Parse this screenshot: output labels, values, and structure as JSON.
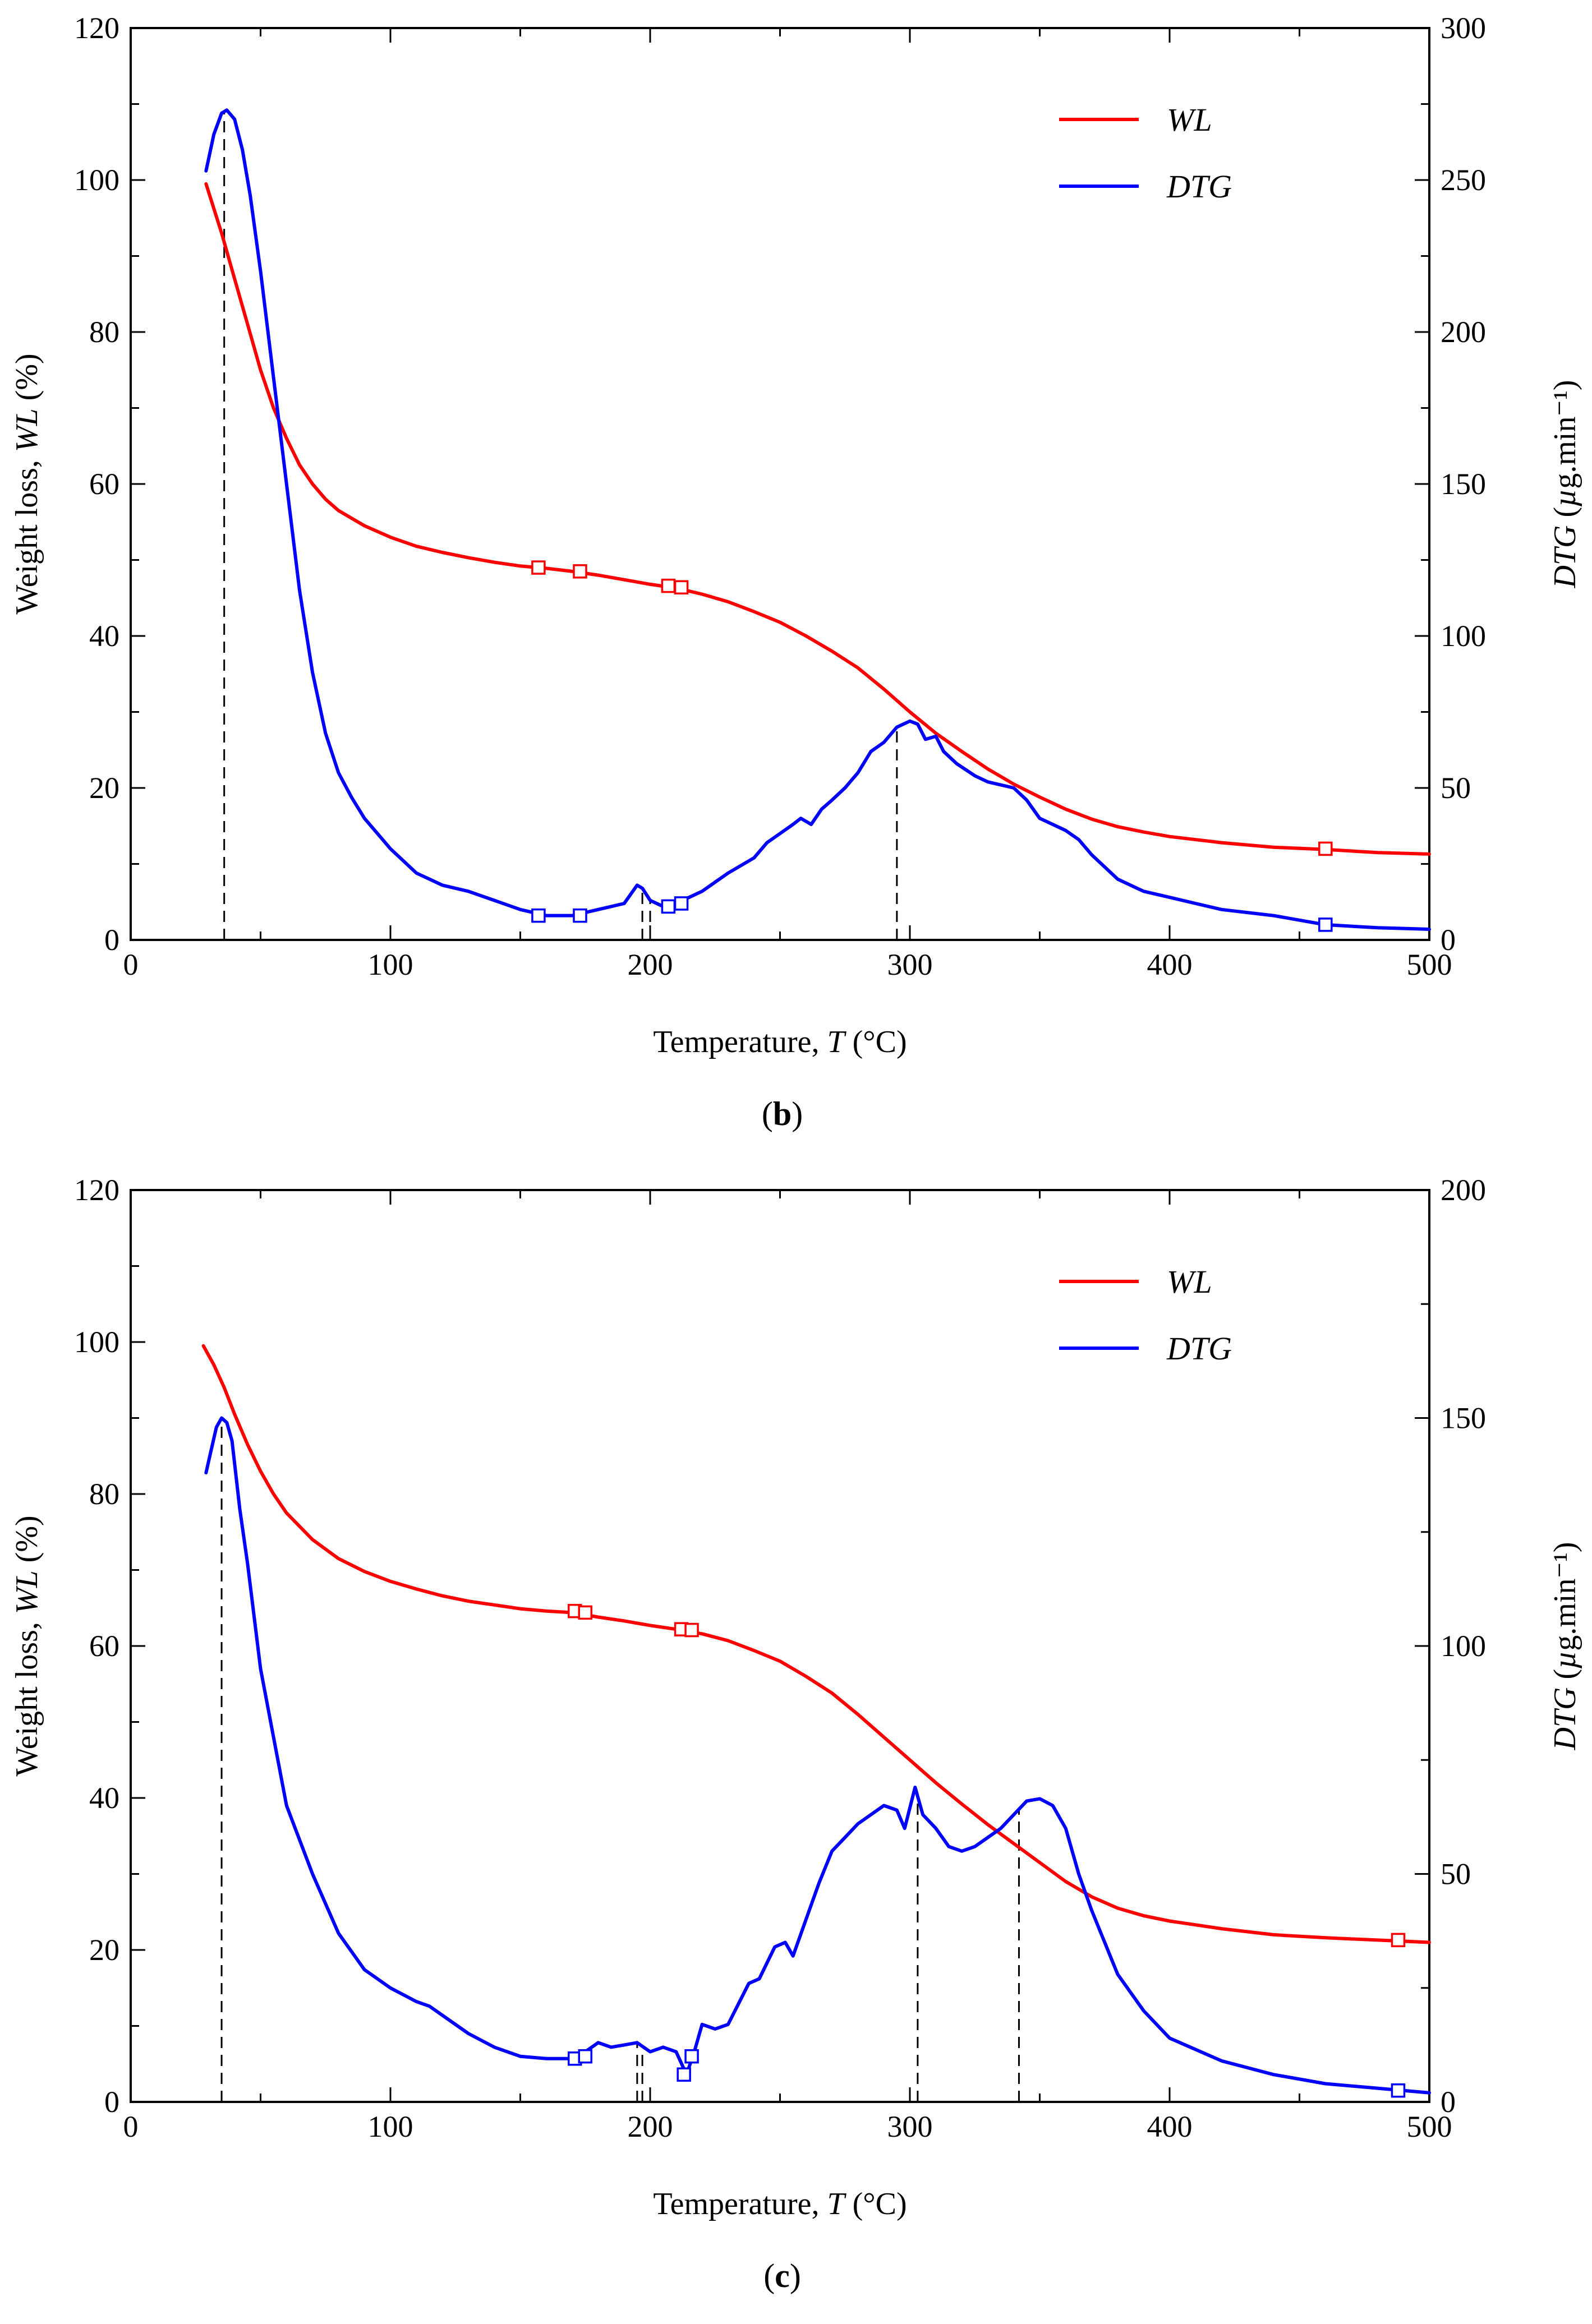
{
  "chart_data": [
    {
      "type": "line",
      "panel_label": "b",
      "caption": "(b)",
      "xlabel": "Temperature, T (°C)",
      "ylabel_left": "Weight loss, WL (%)",
      "ylabel_right": "DTG (µg.min⁻¹)",
      "xlim": [
        0,
        500
      ],
      "ylim_left": [
        0,
        120
      ],
      "ylim_right": [
        0,
        300
      ],
      "x_ticks": [
        0,
        100,
        200,
        300,
        400,
        500
      ],
      "y_ticks_left": [
        0,
        20,
        40,
        60,
        80,
        100,
        120
      ],
      "y_ticks_right": [
        0,
        50,
        100,
        150,
        200,
        250,
        300
      ],
      "legend": [
        "WL",
        "DTG"
      ],
      "series": [
        {
          "name": "WL",
          "axis": "left",
          "color": "#ff0000",
          "x": [
            29,
            35,
            40,
            45,
            50,
            55,
            60,
            65,
            70,
            75,
            80,
            90,
            100,
            110,
            120,
            130,
            140,
            150,
            160,
            170,
            180,
            190,
            200,
            210,
            220,
            230,
            240,
            250,
            260,
            270,
            280,
            290,
            300,
            310,
            320,
            330,
            340,
            350,
            360,
            370,
            380,
            390,
            400,
            420,
            440,
            460,
            480,
            500
          ],
          "values": [
            99.5,
            93,
            87,
            81,
            75,
            70,
            66,
            62.5,
            60,
            58,
            56.5,
            54.5,
            53,
            51.8,
            51,
            50.3,
            49.7,
            49.2,
            48.9,
            48.5,
            48,
            47.4,
            46.8,
            46.3,
            45.5,
            44.5,
            43.2,
            41.8,
            40,
            38,
            35.8,
            33,
            30,
            27.2,
            24.8,
            22.5,
            20.5,
            18.8,
            17.2,
            15.9,
            14.9,
            14.2,
            13.6,
            12.8,
            12.2,
            11.9,
            11.5,
            11.3
          ]
        },
        {
          "name": "DTG",
          "axis": "right",
          "color": "#0000ff",
          "x": [
            29,
            32,
            35,
            37,
            40,
            43,
            46,
            50,
            55,
            60,
            65,
            70,
            75,
            80,
            85,
            90,
            95,
            100,
            105,
            110,
            120,
            130,
            140,
            150,
            160,
            170,
            175,
            180,
            185,
            190,
            195,
            197,
            200,
            205,
            210,
            215,
            220,
            225,
            230,
            240,
            245,
            250,
            255,
            258,
            262,
            266,
            270,
            275,
            280,
            285,
            290,
            295,
            300,
            303,
            306,
            310,
            313,
            318,
            325,
            330,
            340,
            345,
            350,
            355,
            360,
            365,
            370,
            380,
            390,
            400,
            410,
            420,
            440,
            460,
            480,
            500
          ],
          "values": [
            253,
            265,
            272,
            273,
            270,
            260,
            245,
            220,
            185,
            150,
            115,
            88,
            68,
            55,
            47,
            40,
            35,
            30,
            26,
            22,
            18,
            16,
            13,
            10,
            8,
            8,
            9,
            10,
            11,
            12,
            18,
            17,
            13,
            11,
            12,
            14,
            16,
            19,
            22,
            27,
            32,
            35,
            38,
            40,
            38,
            43,
            46,
            50,
            55,
            62,
            65,
            70,
            72,
            71,
            66,
            67,
            62,
            58,
            54,
            52,
            50,
            46,
            40,
            38,
            36,
            33,
            28,
            20,
            16,
            14,
            12,
            10,
            8,
            5,
            4,
            3.5
          ]
        }
      ],
      "markers_WL": [
        [
          157,
          49
        ],
        [
          173,
          48.5
        ],
        [
          207,
          46.6
        ],
        [
          212,
          46.4
        ],
        [
          460,
          12
        ]
      ],
      "markers_DTG": [
        [
          157,
          8
        ],
        [
          173,
          8
        ],
        [
          207,
          11
        ],
        [
          212,
          12
        ],
        [
          460,
          5
        ]
      ],
      "dashed_lines_x": [
        36,
        197,
        200,
        295
      ]
    },
    {
      "type": "line",
      "panel_label": "c",
      "caption": "(c)",
      "xlabel": "Temperature, T (°C)",
      "ylabel_left": "Weight loss, WL (%)",
      "ylabel_right": "DTG (µg.min⁻¹)",
      "xlim": [
        0,
        500
      ],
      "ylim_left": [
        0,
        120
      ],
      "ylim_right": [
        0,
        200
      ],
      "x_ticks": [
        0,
        100,
        200,
        300,
        400,
        500
      ],
      "y_ticks_left": [
        0,
        20,
        40,
        60,
        80,
        100,
        120
      ],
      "y_ticks_right": [
        0,
        50,
        100,
        150,
        200
      ],
      "legend": [
        "WL",
        "DTG"
      ],
      "series": [
        {
          "name": "WL",
          "axis": "left",
          "color": "#ff0000",
          "x": [
            28,
            32,
            36,
            40,
            45,
            50,
            55,
            60,
            70,
            80,
            90,
            100,
            110,
            120,
            130,
            140,
            150,
            160,
            170,
            180,
            190,
            200,
            210,
            220,
            230,
            240,
            250,
            260,
            270,
            280,
            290,
            300,
            310,
            320,
            330,
            340,
            350,
            360,
            370,
            380,
            390,
            400,
            420,
            440,
            460,
            480,
            500
          ],
          "values": [
            99.5,
            97,
            94,
            90.5,
            86.5,
            83,
            80,
            77.5,
            74,
            71.5,
            69.8,
            68.5,
            67.5,
            66.6,
            65.9,
            65.4,
            64.9,
            64.6,
            64.4,
            63.8,
            63.3,
            62.7,
            62.2,
            61.6,
            60.7,
            59.4,
            58,
            56,
            53.8,
            51,
            48,
            45,
            42,
            39.2,
            36.5,
            34,
            31.5,
            29,
            27,
            25.5,
            24.5,
            23.8,
            22.8,
            22,
            21.6,
            21.3,
            21
          ]
        },
        {
          "name": "DTG",
          "axis": "right",
          "color": "#0000ff",
          "x": [
            29,
            31,
            33,
            35,
            37,
            39,
            42,
            45,
            50,
            55,
            60,
            70,
            80,
            90,
            100,
            110,
            115,
            120,
            130,
            140,
            150,
            160,
            170,
            175,
            180,
            185,
            190,
            195,
            200,
            205,
            210,
            214,
            217,
            220,
            225,
            230,
            238,
            242,
            248,
            252,
            255,
            260,
            265,
            270,
            275,
            280,
            285,
            290,
            295,
            298,
            302,
            305,
            310,
            315,
            320,
            325,
            330,
            335,
            340,
            345,
            350,
            355,
            360,
            365,
            370,
            375,
            380,
            390,
            400,
            420,
            440,
            460,
            480,
            500
          ],
          "values": [
            138,
            143,
            148,
            150,
            149,
            145,
            130,
            118,
            95,
            80,
            65,
            50,
            37,
            29,
            25,
            22,
            21,
            19,
            15,
            12,
            10,
            9.5,
            9.5,
            11,
            13,
            12,
            12.5,
            13,
            11,
            12,
            11,
            6,
            11,
            17,
            16,
            17,
            26,
            27,
            34,
            35,
            32,
            40,
            48,
            55,
            58,
            61,
            63,
            65,
            64,
            60,
            69,
            63,
            60,
            56,
            55,
            56,
            58,
            60,
            63,
            66,
            66.5,
            65,
            60,
            50,
            42,
            35,
            28,
            20,
            14,
            9,
            6,
            4,
            3,
            2
          ]
        }
      ],
      "markers_WL": [
        [
          171,
          64.6
        ],
        [
          175,
          64.4
        ],
        [
          212,
          62.2
        ],
        [
          216,
          62.1
        ],
        [
          488,
          21.3
        ]
      ],
      "markers_DTG": [
        [
          171,
          9.5
        ],
        [
          175,
          10
        ],
        [
          213,
          6
        ],
        [
          216,
          10
        ],
        [
          488,
          2.5
        ]
      ],
      "dashed_lines_x": [
        35,
        195,
        197,
        303,
        342
      ]
    }
  ]
}
